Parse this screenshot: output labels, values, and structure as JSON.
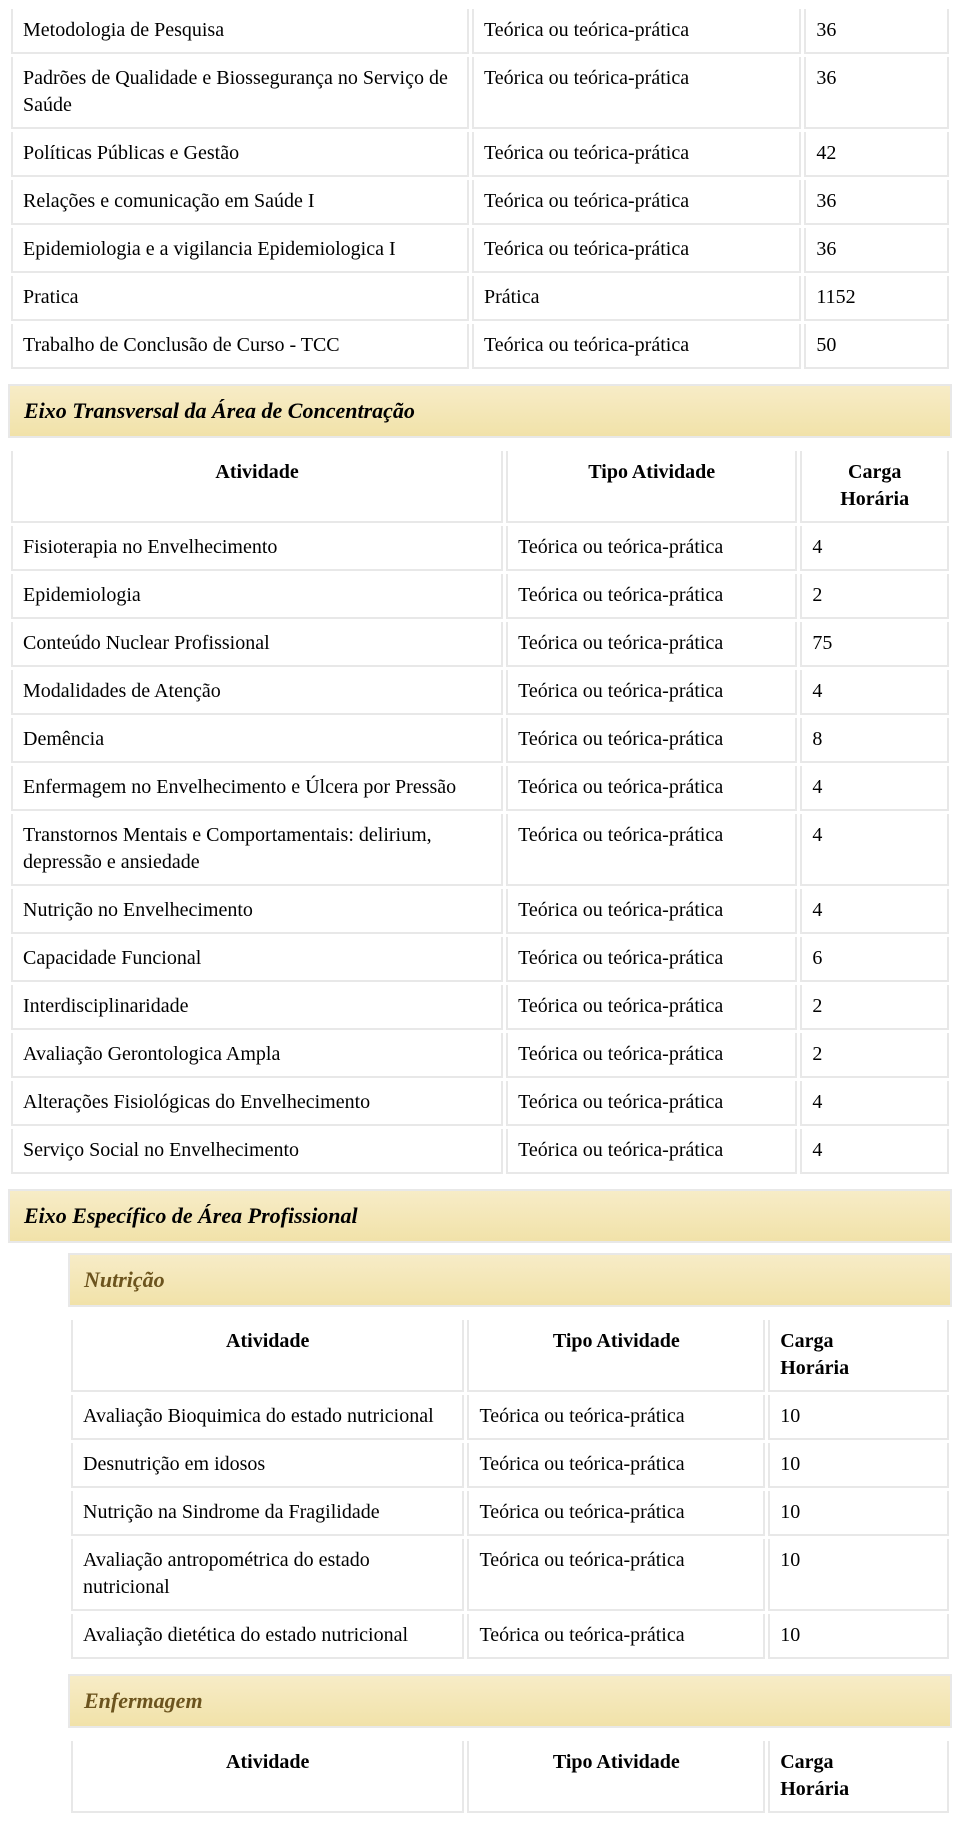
{
  "headers": {
    "activity": "Atividade",
    "type": "Tipo Atividade",
    "load": "Carga Horária",
    "load_2line": "Carga\nHorária"
  },
  "table1": {
    "rows": [
      {
        "a": "Metodologia de Pesquisa",
        "t": "Teórica ou teórica-prática",
        "c": "36"
      },
      {
        "a": "Padrões de Qualidade e Biossegurança no Serviço de Saúde",
        "t": "Teórica ou teórica-prática",
        "c": "36"
      },
      {
        "a": "Políticas Públicas e Gestão",
        "t": "Teórica ou teórica-prática",
        "c": "42"
      },
      {
        "a": "Relações e comunicação em Saúde I",
        "t": "Teórica ou teórica-prática",
        "c": "36"
      },
      {
        "a": "Epidemiologia e a vigilancia Epidemiologica I",
        "t": "Teórica ou teórica-prática",
        "c": "36"
      },
      {
        "a": "Pratica",
        "t": "Prática",
        "c": "1152"
      },
      {
        "a": "Trabalho de Conclusão de Curso - TCC",
        "t": "Teórica ou teórica-prática",
        "c": "50"
      }
    ]
  },
  "section2": {
    "title": "Eixo Transversal da Área de Concentração",
    "rows": [
      {
        "a": "Fisioterapia no Envelhecimento",
        "t": "Teórica ou teórica-prática",
        "c": "4"
      },
      {
        "a": "Epidemiologia",
        "t": "Teórica ou teórica-prática",
        "c": "2"
      },
      {
        "a": "Conteúdo Nuclear Profissional",
        "t": "Teórica ou teórica-prática",
        "c": "75"
      },
      {
        "a": "Modalidades de Atenção",
        "t": "Teórica ou teórica-prática",
        "c": "4"
      },
      {
        "a": "Demência",
        "t": "Teórica ou teórica-prática",
        "c": "8"
      },
      {
        "a": "Enfermagem no Envelhecimento e Úlcera por Pressão",
        "t": "Teórica ou teórica-prática",
        "c": "4"
      },
      {
        "a": "Transtornos Mentais e Comportamentais: delirium, depressão e ansiedade",
        "t": "Teórica ou teórica-prática",
        "c": "4"
      },
      {
        "a": "Nutrição no Envelhecimento",
        "t": "Teórica ou teórica-prática",
        "c": "4"
      },
      {
        "a": "Capacidade Funcional",
        "t": "Teórica ou teórica-prática",
        "c": "6"
      },
      {
        "a": "Interdisciplinaridade",
        "t": "Teórica ou teórica-prática",
        "c": "2"
      },
      {
        "a": "Avaliação Gerontologica Ampla",
        "t": "Teórica ou teórica-prática",
        "c": "2"
      },
      {
        "a": "Alterações Fisiológicas do Envelhecimento",
        "t": "Teórica ou teórica-prática",
        "c": "4"
      },
      {
        "a": "Serviço Social no Envelhecimento",
        "t": "Teórica ou teórica-prática",
        "c": "4"
      }
    ]
  },
  "section3": {
    "title": "Eixo Específico de Área Profissional",
    "sub1": {
      "title": "Nutrição",
      "rows": [
        {
          "a": "Avaliação Bioquimica do estado nutricional",
          "t": "Teórica ou teórica-prática",
          "c": "10"
        },
        {
          "a": "Desnutrição em idosos",
          "t": "Teórica ou teórica-prática",
          "c": "10"
        },
        {
          "a": "Nutrição na Sindrome da Fragilidade",
          "t": "Teórica ou teórica-prática",
          "c": "10"
        },
        {
          "a": "Avaliação antropométrica do estado nutricional",
          "t": "Teórica ou teórica-prática",
          "c": "10"
        },
        {
          "a": "Avaliação dietética do estado nutricional",
          "t": "Teórica ou teórica-prática",
          "c": "10"
        }
      ]
    },
    "sub2": {
      "title": "Enfermagem"
    }
  }
}
